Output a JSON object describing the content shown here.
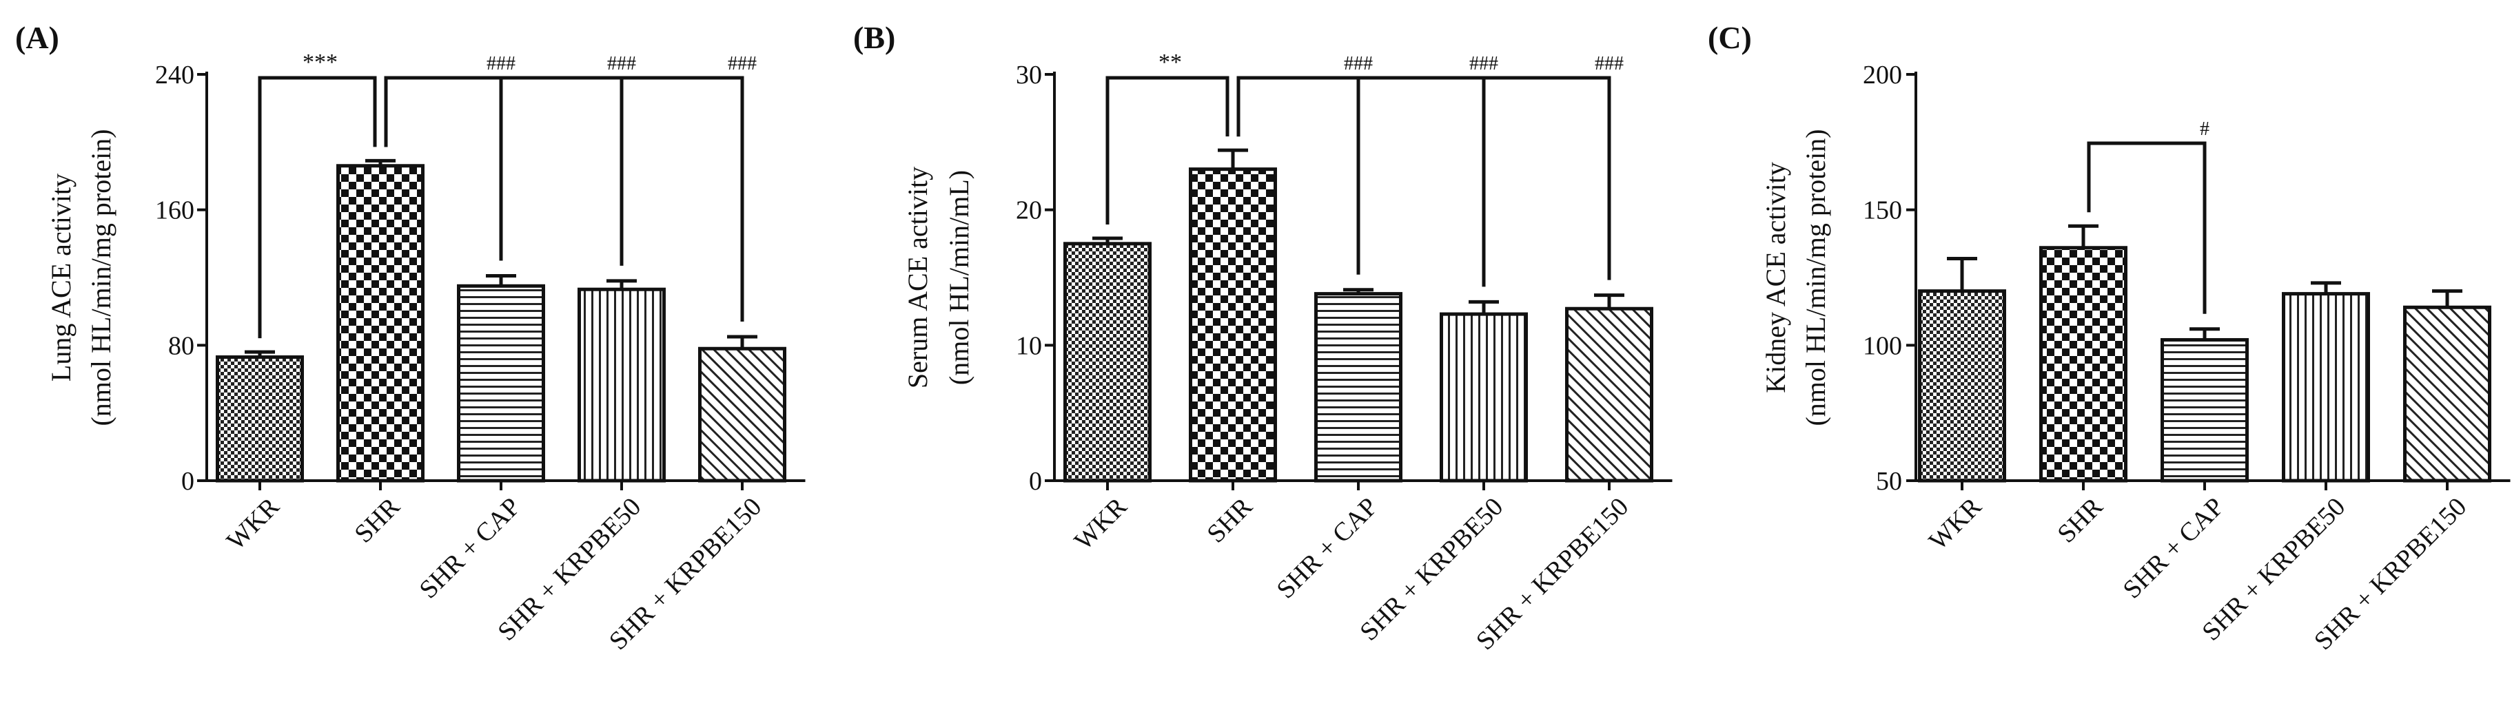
{
  "chart_data": [
    {
      "type": "bar",
      "panel": "(A)",
      "ylabel_line1": "Lung ACE activity",
      "ylabel_line2": "(nmol HL/min/mg protein)",
      "ylim": [
        0,
        240
      ],
      "yticks": [
        0,
        80,
        160,
        240
      ],
      "categories": [
        "WKR",
        "SHR",
        "SHR + CAP",
        "SHR + KRPBE50",
        "SHR + KRPBE150"
      ],
      "values": [
        73,
        186,
        115,
        113,
        78
      ],
      "errors": [
        3,
        3,
        6,
        5,
        7
      ],
      "patterns": [
        "fine-check",
        "check",
        "hlines",
        "vlines",
        "diag"
      ],
      "significance": [
        {
          "from": 0,
          "to": 1,
          "label": "***"
        },
        {
          "from": 1,
          "to": 2,
          "label": "###"
        },
        {
          "from": 1,
          "to": 3,
          "label": "###"
        },
        {
          "from": 1,
          "to": 4,
          "label": "###"
        }
      ]
    },
    {
      "type": "bar",
      "panel": "(B)",
      "ylabel_line1": "Serum ACE activity",
      "ylabel_line2": "(nmol HL/min/mL)",
      "ylim": [
        0,
        30
      ],
      "yticks": [
        0,
        10,
        20,
        30
      ],
      "categories": [
        "WKR",
        "SHR",
        "SHR + CAP",
        "SHR + KRPBE50",
        "SHR + KRPBE150"
      ],
      "values": [
        17.5,
        23,
        13.8,
        12.3,
        12.7
      ],
      "errors": [
        0.4,
        1.4,
        0.3,
        0.9,
        1.0
      ],
      "patterns": [
        "fine-check",
        "check",
        "hlines",
        "vlines",
        "diag"
      ],
      "significance": [
        {
          "from": 0,
          "to": 1,
          "label": "**"
        },
        {
          "from": 1,
          "to": 2,
          "label": "###"
        },
        {
          "from": 1,
          "to": 3,
          "label": "###"
        },
        {
          "from": 1,
          "to": 4,
          "label": "###"
        }
      ]
    },
    {
      "type": "bar",
      "panel": "(C)",
      "ylabel_line1": "Kidney ACE activity",
      "ylabel_line2": "(nmol HL/min/mg protein)",
      "ylim": [
        50,
        200
      ],
      "yticks": [
        50,
        100,
        150,
        200
      ],
      "categories": [
        "WKR",
        "SHR",
        "SHR + CAP",
        "SHR + KRPBE50",
        "SHR + KRPBE150"
      ],
      "values": [
        120,
        136,
        102,
        119,
        114
      ],
      "errors": [
        12,
        8,
        4,
        4,
        6
      ],
      "patterns": [
        "fine-check",
        "check",
        "hlines",
        "vlines",
        "diag"
      ],
      "significance": [
        {
          "from": 1,
          "to": 2,
          "label": "#"
        }
      ]
    }
  ]
}
